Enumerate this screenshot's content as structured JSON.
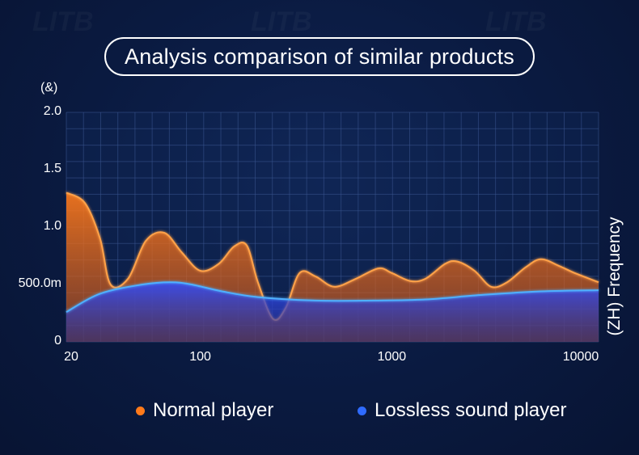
{
  "title": "Analysis comparison of similar products",
  "chart_data": {
    "type": "area",
    "y_unit_label": "(&)",
    "y_axis_label_right": "(ZH) Frequency",
    "x_scale": "log",
    "xlim": [
      20,
      12000
    ],
    "ylim": [
      0,
      2.0
    ],
    "x_ticks": [
      20,
      100,
      1000,
      10000
    ],
    "x_tick_labels": [
      "20",
      "100",
      "1000",
      "10000"
    ],
    "y_ticks": [
      0,
      0.5,
      1.0,
      1.5,
      2.0
    ],
    "y_tick_labels": [
      "0",
      "500.0m",
      "1.0",
      "1.5",
      "2.0"
    ],
    "grid": true,
    "legend_position": "bottom",
    "series": [
      {
        "name": "Normal player",
        "color": "#ff7a1a",
        "x": [
          20,
          25,
          30,
          34,
          42,
          52,
          65,
          80,
          100,
          125,
          150,
          175,
          200,
          240,
          280,
          330,
          400,
          500,
          650,
          850,
          1000,
          1250,
          1500,
          1900,
          2200,
          2700,
          3300,
          4000,
          5000,
          6000,
          7500,
          9000,
          12000
        ],
        "values": [
          1.3,
          1.21,
          0.9,
          0.5,
          0.55,
          0.88,
          0.95,
          0.78,
          0.62,
          0.68,
          0.83,
          0.84,
          0.52,
          0.2,
          0.3,
          0.6,
          0.57,
          0.48,
          0.55,
          0.64,
          0.6,
          0.53,
          0.55,
          0.68,
          0.7,
          0.62,
          0.48,
          0.52,
          0.65,
          0.72,
          0.66,
          0.6,
          0.52
        ]
      },
      {
        "name": "Lossless sound player",
        "color": "#2f6bff",
        "x": [
          20,
          30,
          50,
          70,
          90,
          130,
          200,
          400,
          800,
          1500,
          3000,
          6000,
          12000
        ],
        "values": [
          0.26,
          0.42,
          0.5,
          0.52,
          0.5,
          0.44,
          0.39,
          0.36,
          0.36,
          0.37,
          0.41,
          0.44,
          0.45
        ]
      }
    ]
  }
}
